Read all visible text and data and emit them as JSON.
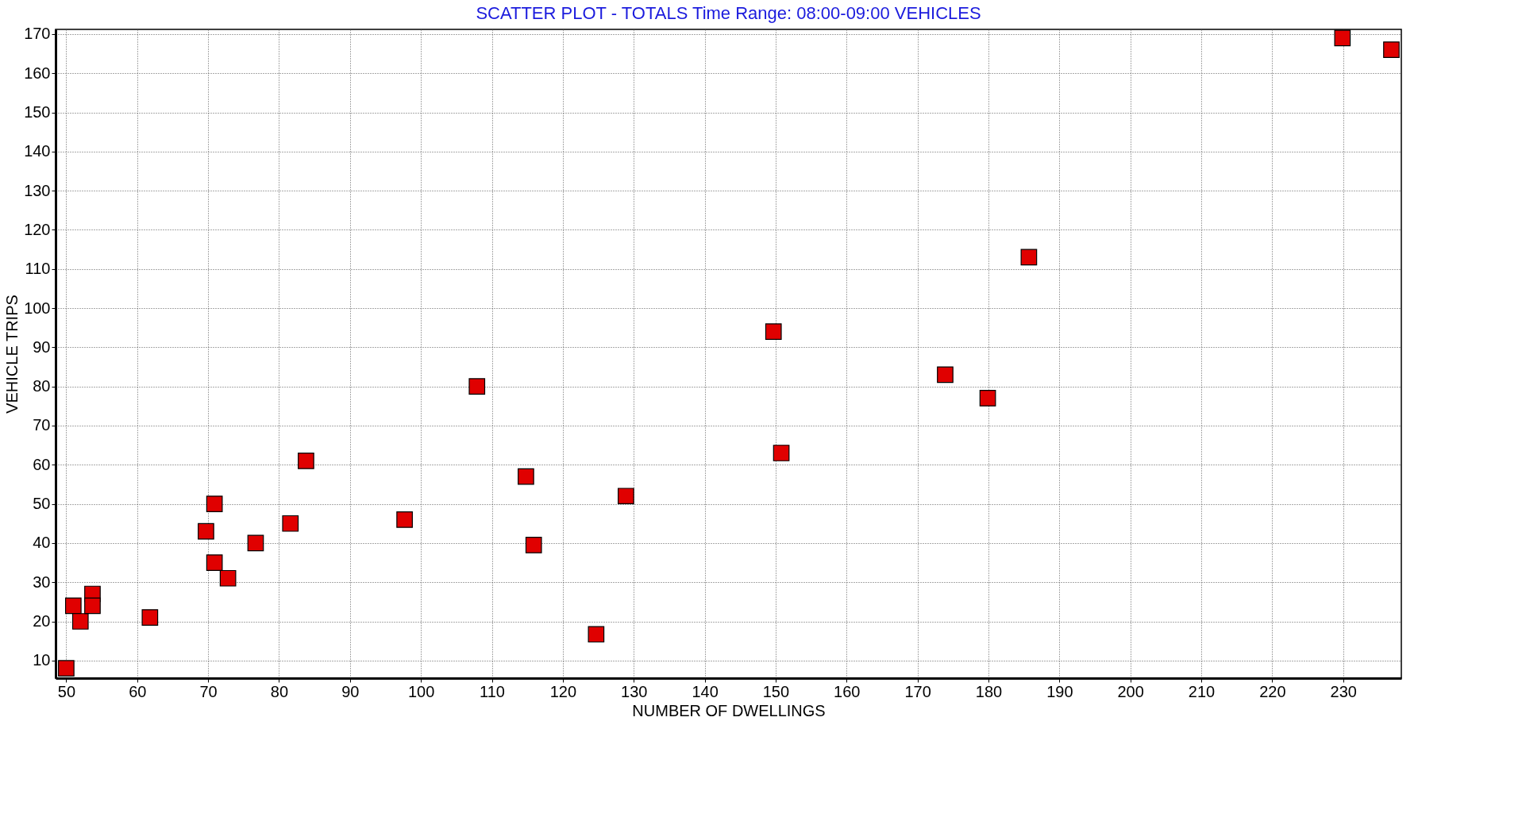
{
  "chart_data": {
    "type": "scatter",
    "title": "SCATTER PLOT -  TOTALS      Time Range: 08:00-09:00      VEHICLES",
    "xlabel": "NUMBER OF DWELLINGS",
    "ylabel": "VEHICLE TRIPS",
    "x": [
      50,
      51,
      52,
      53.7,
      53.7,
      61.8,
      69.7,
      70.9,
      70.9,
      72.8,
      76.7,
      81.6,
      83.8,
      97.7,
      107.9,
      114.8,
      115.9,
      124.7,
      128.9,
      149.7,
      150.8,
      173.9,
      179.9,
      185.7,
      229.9,
      236.8
    ],
    "series": [
      {
        "color": "#e00000",
        "values": [
          8,
          24,
          20,
          27,
          24,
          21,
          43,
          50,
          35,
          31,
          40,
          45,
          61,
          46,
          80,
          57,
          39.5,
          16.7,
          52,
          94,
          63,
          83,
          77,
          113,
          169,
          166
        ]
      }
    ],
    "xlim": [
      48.5,
      238.2
    ],
    "ylim": [
      5.5,
      171.2
    ],
    "xticks": [
      50,
      60,
      70,
      80,
      90,
      100,
      110,
      120,
      130,
      140,
      150,
      160,
      170,
      180,
      190,
      200,
      210,
      220,
      230
    ],
    "yticks": [
      10,
      20,
      30,
      40,
      50,
      60,
      70,
      80,
      90,
      100,
      110,
      120,
      130,
      140,
      150,
      160,
      170
    ],
    "grid": true,
    "marker": "square",
    "legend": false
  }
}
